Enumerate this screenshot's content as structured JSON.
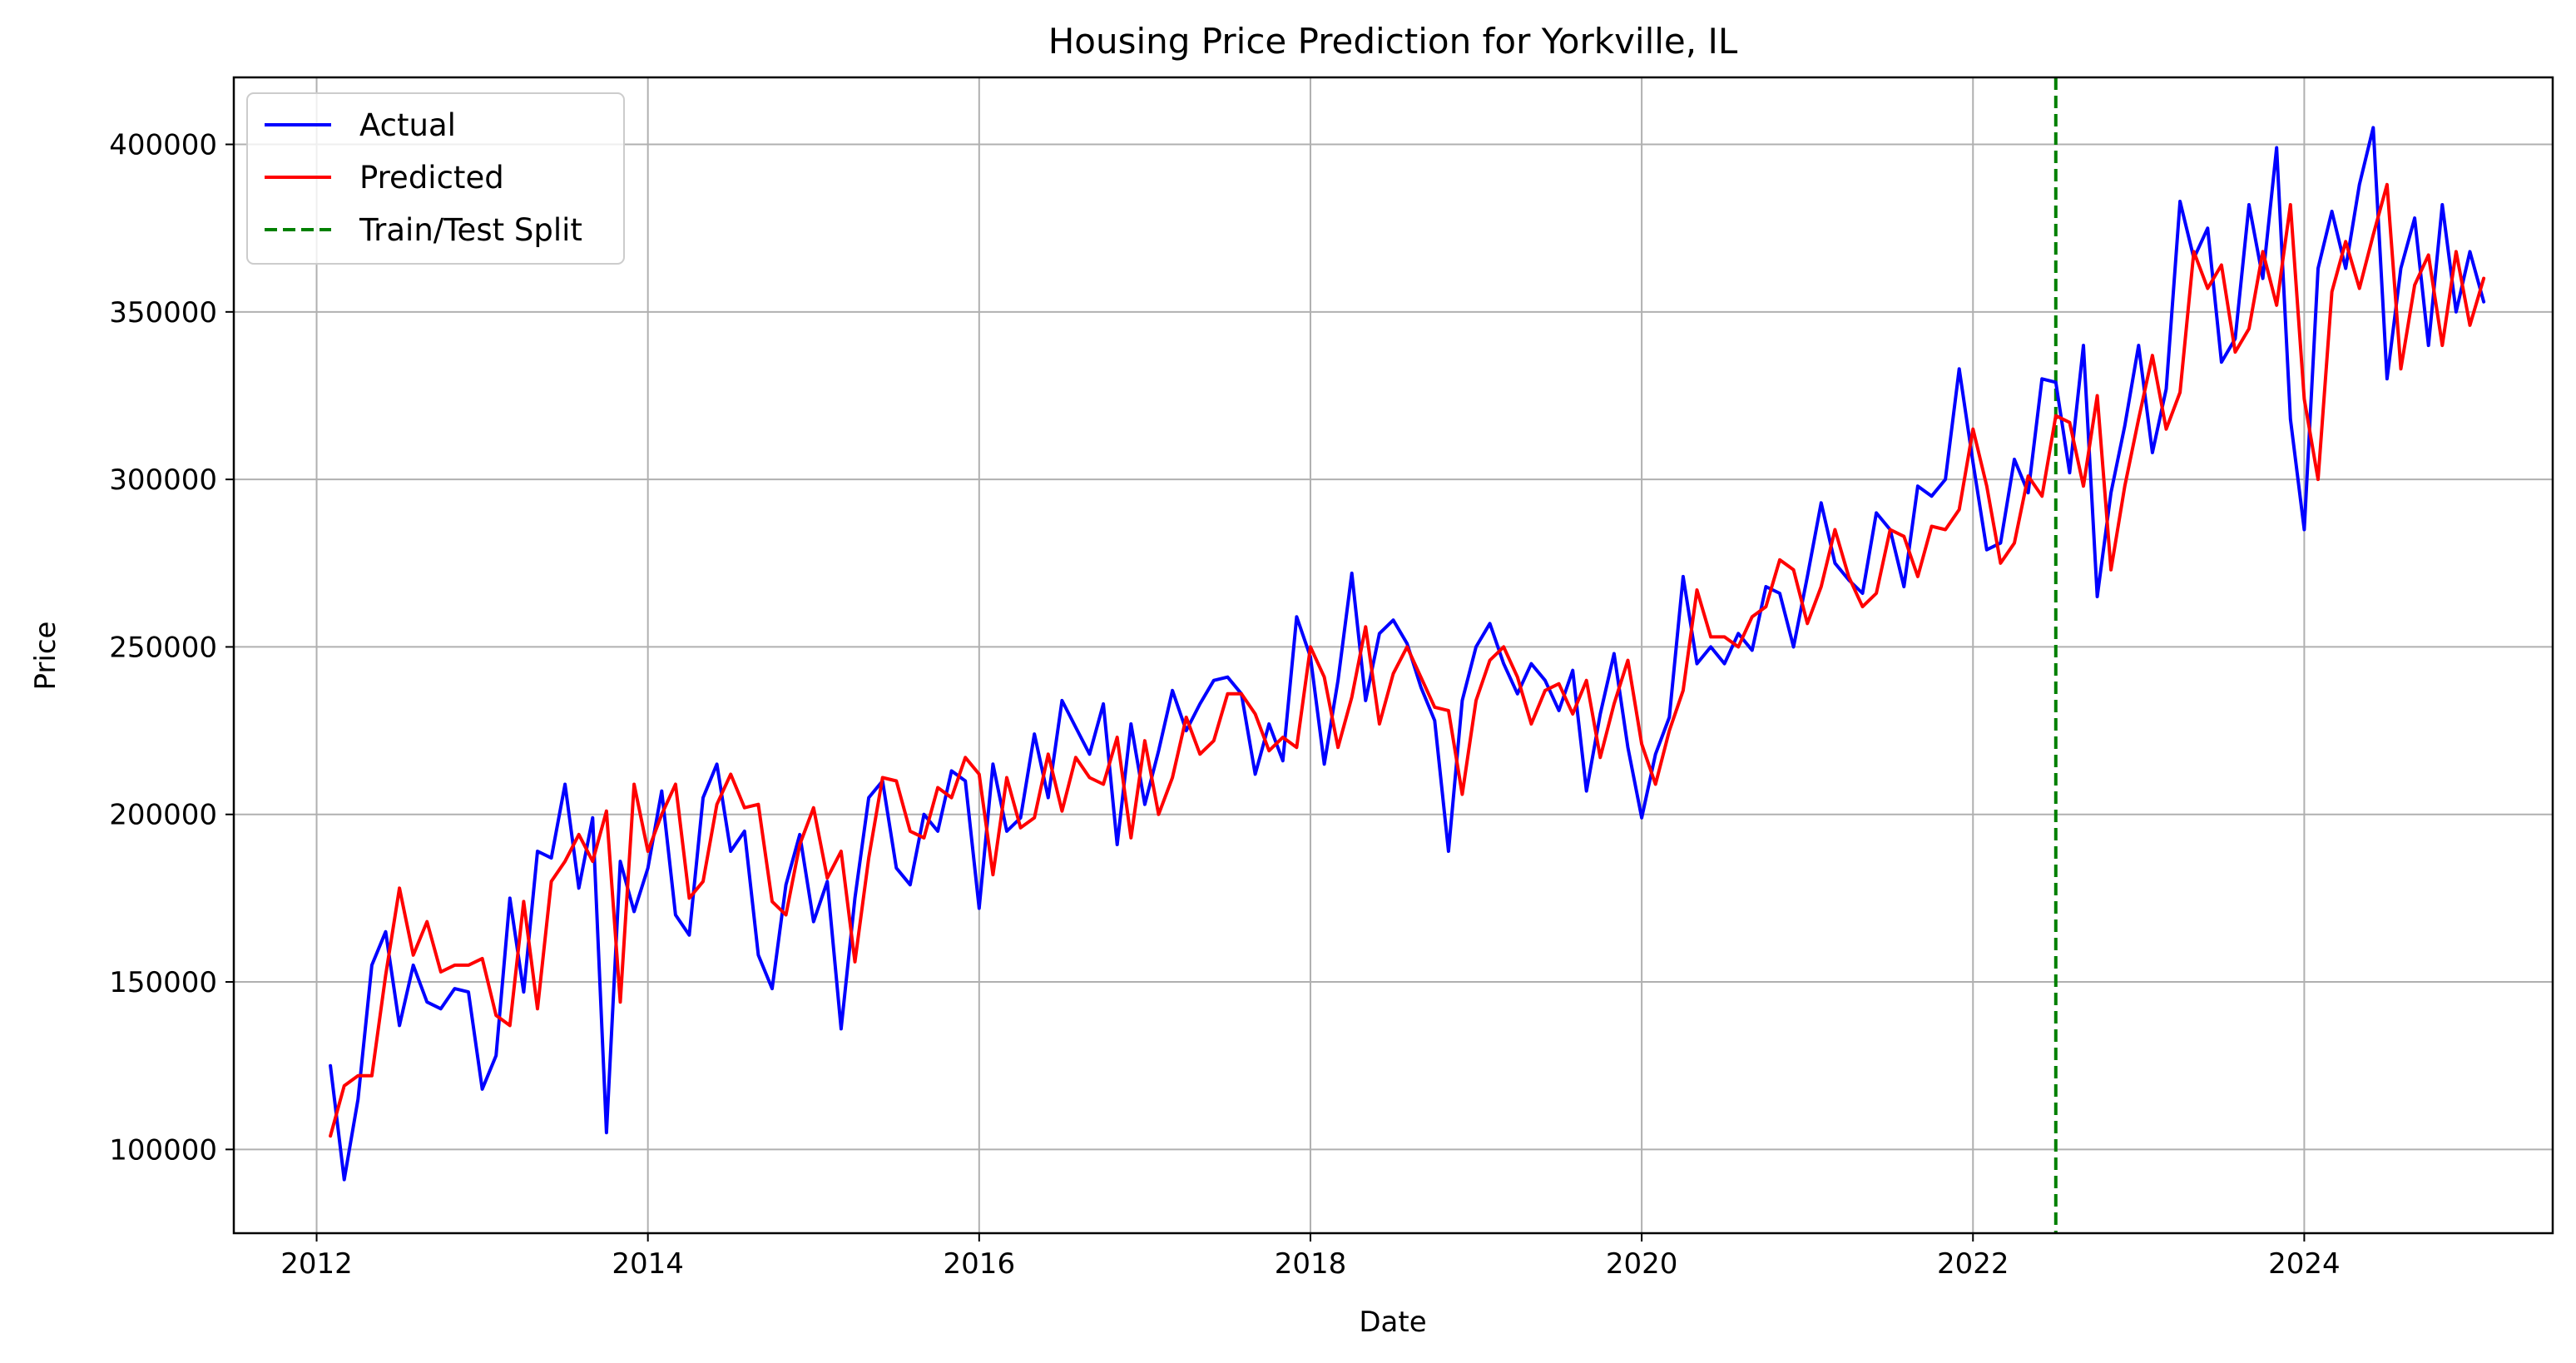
{
  "chart_data": {
    "type": "line",
    "title": "Housing Price Prediction for Yorkville, IL",
    "xlabel": "Date",
    "ylabel": "Price",
    "x_tick_labels": [
      "2012",
      "2014",
      "2016",
      "2018",
      "2020",
      "2022",
      "2024"
    ],
    "y_tick_labels": [
      "100000",
      "150000",
      "200000",
      "250000",
      "300000",
      "350000",
      "400000"
    ],
    "xlim": [
      "2011-07",
      "2025-07"
    ],
    "ylim": [
      75000,
      420000
    ],
    "grid": true,
    "legend_position": "top-left",
    "x_start": "2012-02",
    "x_end": "2025-02",
    "x_frequency": "monthly",
    "series": [
      {
        "name": "Actual",
        "color": "#0000ff",
        "values": [
          125000,
          91000,
          115000,
          155000,
          165000,
          137000,
          155000,
          144000,
          142000,
          148000,
          147000,
          118000,
          128000,
          175000,
          147000,
          189000,
          187000,
          209000,
          178000,
          199000,
          105000,
          186000,
          171000,
          184000,
          207000,
          170000,
          164000,
          205000,
          215000,
          189000,
          195000,
          158000,
          148000,
          179000,
          194000,
          168000,
          180000,
          136000,
          175000,
          205000,
          210000,
          184000,
          179000,
          200000,
          195000,
          213000,
          210000,
          172000,
          215000,
          195000,
          199000,
          224000,
          205000,
          234000,
          226000,
          218000,
          233000,
          191000,
          227000,
          203000,
          219000,
          237000,
          225000,
          233000,
          240000,
          241000,
          236000,
          212000,
          227000,
          216000,
          259000,
          247000,
          215000,
          240000,
          272000,
          234000,
          254000,
          258000,
          251000,
          238000,
          228000,
          189000,
          234000,
          250000,
          257000,
          245000,
          236000,
          245000,
          240000,
          231000,
          243000,
          207000,
          230000,
          248000,
          220000,
          199000,
          218000,
          229000,
          271000,
          245000,
          250000,
          245000,
          254000,
          249000,
          268000,
          266000,
          250000,
          271000,
          293000,
          275000,
          270000,
          266000,
          290000,
          285000,
          268000,
          298000,
          295000,
          300000,
          333000,
          305000,
          279000,
          281000,
          306000,
          296000,
          330000,
          329000,
          302000,
          340000,
          265000,
          296000,
          316000,
          340000,
          308000,
          327000,
          383000,
          366000,
          375000,
          335000,
          342000,
          382000,
          360000,
          399000,
          318000,
          285000,
          363000,
          380000,
          363000,
          388000,
          405000,
          330000,
          363000,
          378000,
          340000,
          382000,
          350000,
          368000,
          353000
        ]
      },
      {
        "name": "Predicted",
        "color": "#ff0000",
        "values": [
          104000,
          119000,
          122000,
          122000,
          152000,
          178000,
          158000,
          168000,
          153000,
          155000,
          155000,
          157000,
          140000,
          137000,
          174000,
          142000,
          180000,
          186000,
          194000,
          186000,
          201000,
          144000,
          209000,
          189000,
          200000,
          209000,
          175000,
          180000,
          203000,
          212000,
          202000,
          203000,
          174000,
          170000,
          191000,
          202000,
          181000,
          189000,
          156000,
          187000,
          211000,
          210000,
          195000,
          193000,
          208000,
          205000,
          217000,
          212000,
          182000,
          211000,
          196000,
          199000,
          218000,
          201000,
          217000,
          211000,
          209000,
          223000,
          193000,
          222000,
          200000,
          211000,
          229000,
          218000,
          222000,
          236000,
          236000,
          230000,
          219000,
          223000,
          220000,
          250000,
          241000,
          220000,
          235000,
          256000,
          227000,
          242000,
          250000,
          241000,
          232000,
          231000,
          206000,
          234000,
          246000,
          250000,
          241000,
          227000,
          237000,
          239000,
          230000,
          240000,
          217000,
          233000,
          246000,
          221000,
          209000,
          225000,
          237000,
          267000,
          253000,
          253000,
          250000,
          259000,
          262000,
          276000,
          273000,
          257000,
          268000,
          285000,
          271000,
          262000,
          266000,
          285000,
          283000,
          271000,
          286000,
          285000,
          291000,
          315000,
          298000,
          275000,
          281000,
          301000,
          295000,
          319000,
          317000,
          298000,
          325000,
          273000,
          298000,
          318000,
          337000,
          315000,
          326000,
          368000,
          357000,
          364000,
          338000,
          345000,
          368000,
          352000,
          382000,
          324000,
          300000,
          356000,
          371000,
          357000,
          373000,
          388000,
          333000,
          358000,
          367000,
          340000,
          368000,
          346000,
          360000
        ]
      }
    ],
    "split": {
      "name": "Train/Test Split",
      "date": "2022-07",
      "color": "#008000"
    }
  }
}
